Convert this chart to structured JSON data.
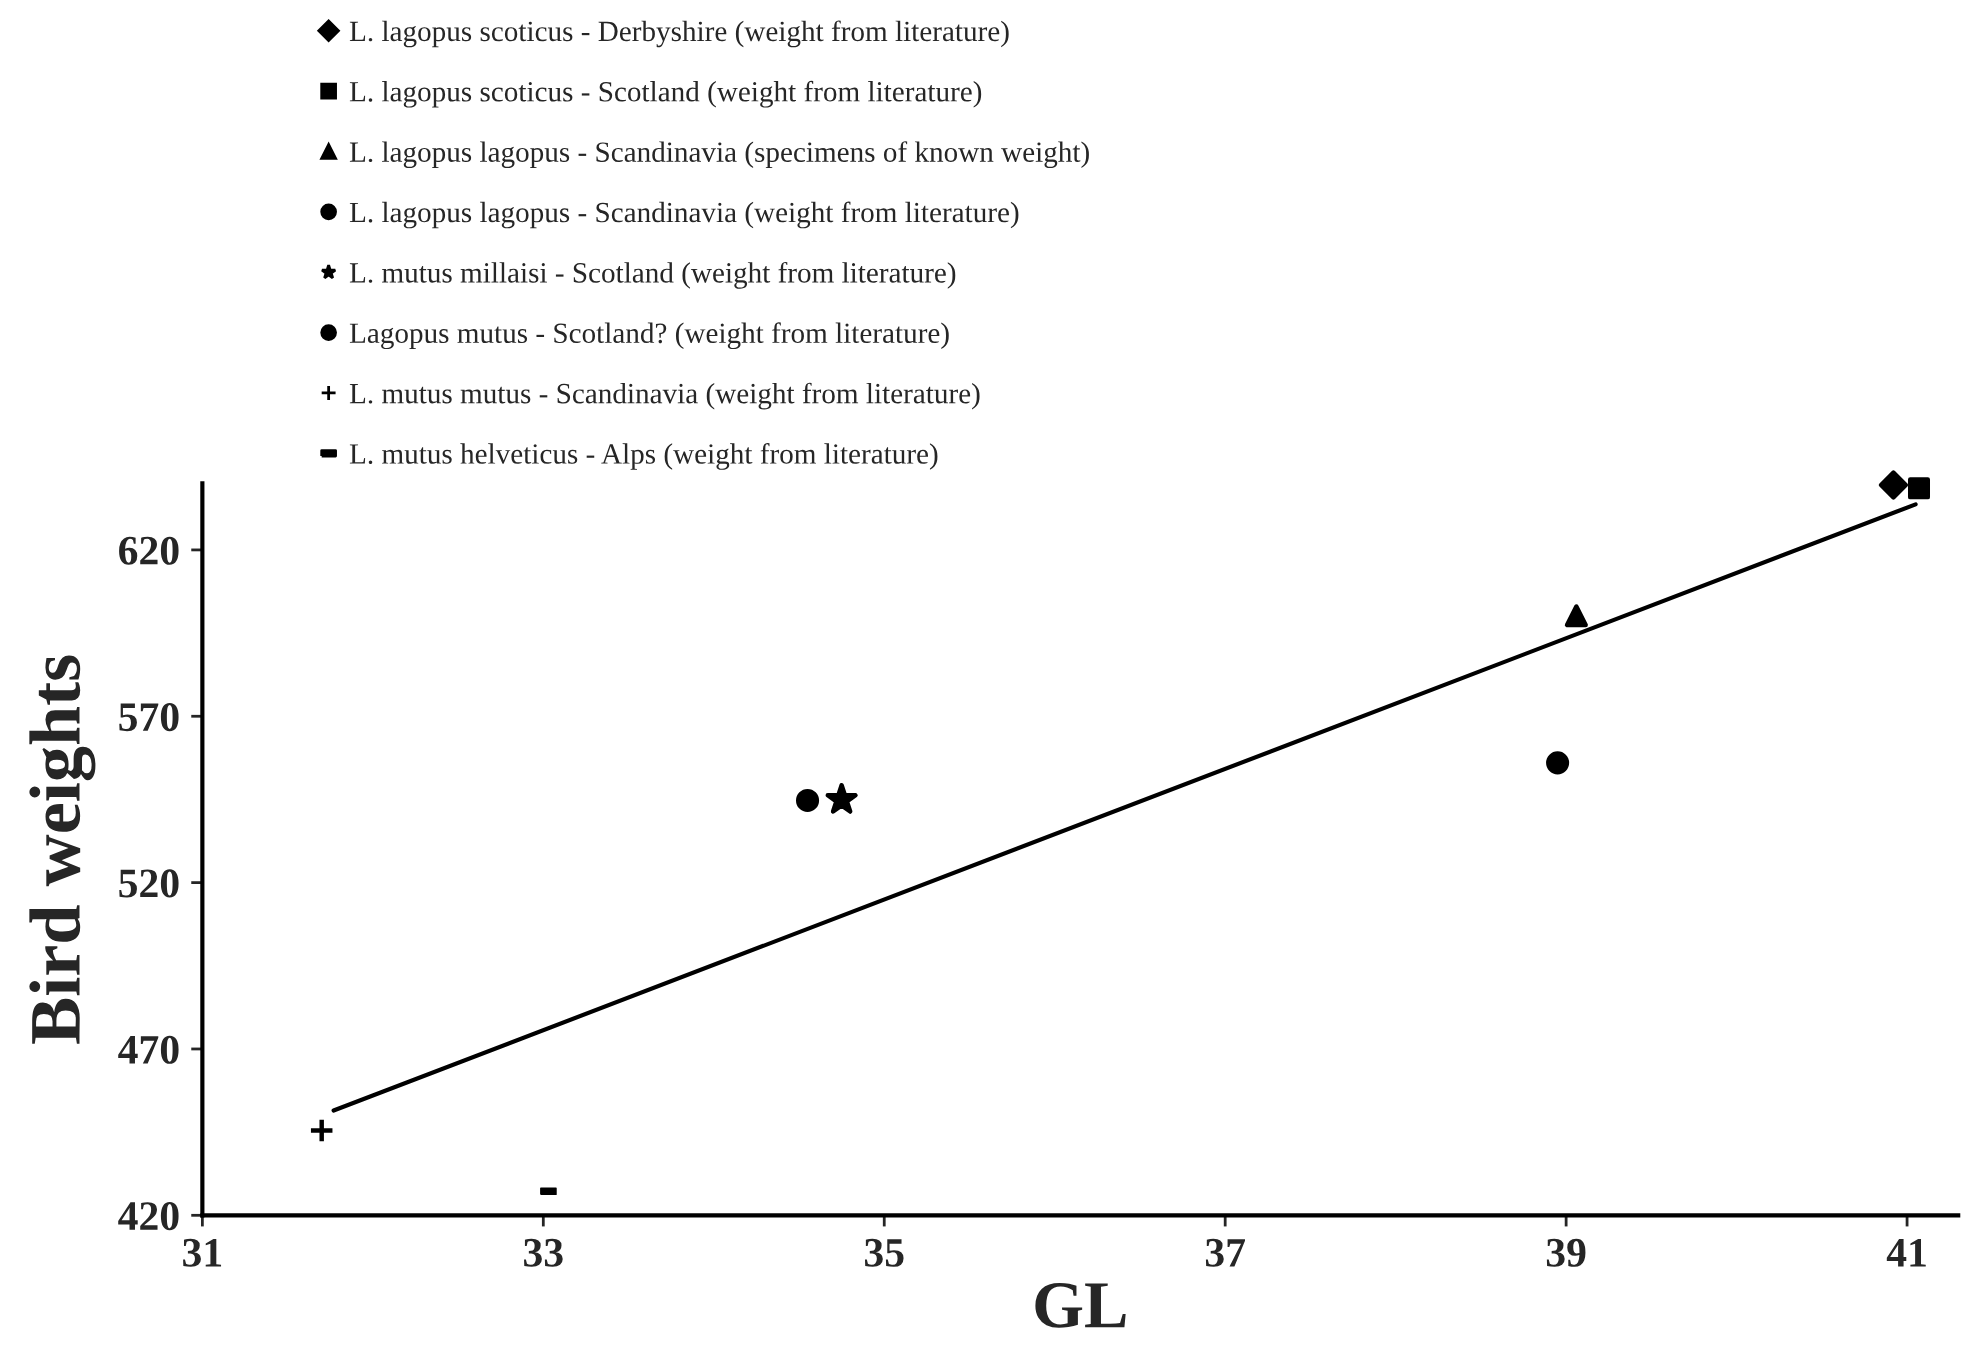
{
  "chart_data": {
    "type": "scatter",
    "xlabel": "GL",
    "ylabel": "Bird weights",
    "xlim": [
      31,
      41.3
    ],
    "ylim": [
      420,
      640
    ],
    "xticks": [
      31,
      33,
      35,
      37,
      39,
      41
    ],
    "yticks": [
      420,
      470,
      520,
      570,
      620
    ],
    "grid": false,
    "legend": "top left",
    "series": [
      {
        "name": "L. lagopus scoticus - Derbyshire (weight from literature)",
        "color": "#000000",
        "marker": "diamond",
        "x": [
          40.92
        ],
        "values": [
          639.5
        ]
      },
      {
        "name": "L. lagopus scoticus - Scotland (weight from literature)",
        "color": "#000000",
        "marker": "square",
        "x": [
          41.07
        ],
        "values": [
          638.5
        ]
      },
      {
        "name": "L. lagopus lagopus - Scandinavia (specimens of known weight)",
        "color": "#000000",
        "marker": "triangle",
        "x": [
          39.06
        ],
        "values": [
          600.2
        ]
      },
      {
        "name": "L. lagopus lagopus - Scandinavia (weight from literature)",
        "color": "#000000",
        "marker": "circle",
        "x": [
          38.95
        ],
        "values": [
          556
        ]
      },
      {
        "name": "L. mutus millaisi - Scotland (weight from literature)",
        "color": "#000000",
        "marker": "star",
        "x": [
          34.75
        ],
        "values": [
          544.9
        ]
      },
      {
        "name": "Lagopus mutus - Scotland? (weight from literature)",
        "color": "#000000",
        "marker": "circle",
        "x": [
          34.55
        ],
        "values": [
          544.7
        ]
      },
      {
        "name": "L. mutus mutus - Scandinavia (weight from literature)",
        "color": "#000000",
        "marker": "cross",
        "x": [
          31.7
        ],
        "values": [
          445.5
        ]
      },
      {
        "name": "L. mutus helveticus - Alps (weight from literature)",
        "color": "#000000",
        "x": [
          33.03
        ],
        "values": [
          427.2
        ]
      },
      {
        "type": "line",
        "color": "#000000",
        "marker": "none",
        "x": [
          31.77,
          41.05
        ],
        "values": [
          451.5,
          633.7
        ]
      }
    ]
  }
}
